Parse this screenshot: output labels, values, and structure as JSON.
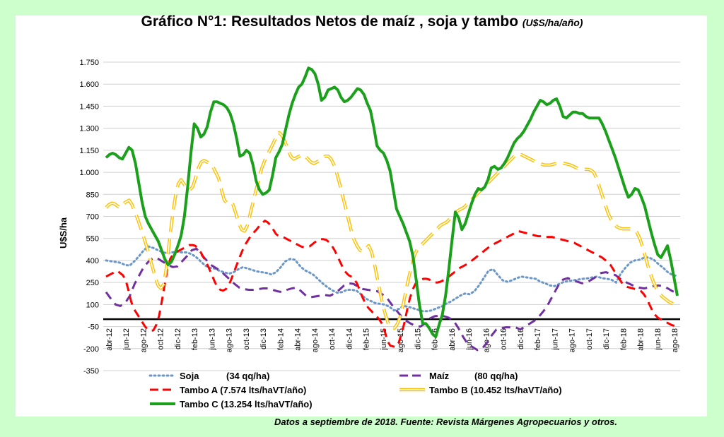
{
  "title": "Gráfico N°1: Resultados Netos de maíz , soja y tambo",
  "title_units": "(U$S/ha/año)",
  "footnote": "Datos a septiembre de 2018. Fuente: Revista Márgenes Agropecuarios y otros.",
  "colors": {
    "background": "#ccffcc",
    "soja": "#6a96c8",
    "maiz": "#7030a0",
    "tamboA": "#ff0000",
    "tamboB": "#ffc000",
    "tamboC": "#1aa01a"
  },
  "chart_data": {
    "type": "line",
    "ylabel": "U$S/ha",
    "ylim": [
      -350,
      1750
    ],
    "yticks": [
      -350,
      -200,
      -50,
      100,
      250,
      400,
      550,
      700,
      850,
      1000,
      1150,
      1300,
      1450,
      1600,
      1750
    ],
    "ytick_labels": [
      "-350",
      "-200",
      "-50",
      "100",
      "250",
      "400",
      "550",
      "700",
      "850",
      "1.000",
      "1.150",
      "1.300",
      "1.450",
      "1.600",
      "1.750"
    ],
    "xtick_labels": [
      "abr-12",
      "jun-12",
      "ago-12",
      "oct-12",
      "dic-12",
      "feb-13",
      "jun-13",
      "ago-13",
      "oct-13",
      "dic-13",
      "feb-14",
      "abr-14",
      "ago-14",
      "oct-14",
      "dic-14",
      "feb-15",
      "jun-15",
      "ago-15",
      "dic-15",
      "feb-16",
      "abr-16",
      "jun-16",
      "ago-16",
      "oct-16",
      "dic-16",
      "feb-17",
      "jun-17",
      "ago-17",
      "oct-17",
      "dic-17",
      "feb-18",
      "abr-18",
      "jun-18",
      "ago-18"
    ],
    "grid": true,
    "zero_line": true,
    "legend_position": "bottom",
    "x_start": "abr-12",
    "x_end": "sep-18",
    "series": [
      {
        "key": "soja",
        "name": "Soja",
        "legend_detail": "(34 qq/ha)",
        "style": "dotted",
        "values": [
          400,
          395,
          390,
          385,
          370,
          365,
          395,
          430,
          470,
          495,
          485,
          470,
          455,
          450,
          455,
          460,
          455,
          455,
          445,
          425,
          395,
          365,
          350,
          345,
          330,
          320,
          310,
          320,
          340,
          355,
          345,
          335,
          325,
          320,
          315,
          305,
          320,
          355,
          395,
          410,
          405,
          365,
          335,
          320,
          300,
          270,
          240,
          215,
          195,
          180,
          185,
          200,
          200,
          195,
          170,
          140,
          125,
          110,
          105,
          100,
          85,
          60,
          70,
          90,
          85,
          75,
          65,
          55,
          55,
          60,
          75,
          85,
          105,
          120,
          140,
          160,
          175,
          170,
          190,
          230,
          280,
          330,
          340,
          300,
          265,
          255,
          265,
          280,
          290,
          285,
          280,
          275,
          255,
          245,
          230,
          225,
          240,
          255,
          260,
          265,
          270,
          275,
          278,
          285,
          290,
          280,
          275,
          270,
          250,
          310,
          350,
          385,
          400,
          405,
          420,
          420,
          405,
          375,
          350,
          320,
          300,
          295
        ],
        "name_label_offset": 0
      },
      {
        "key": "maiz",
        "name": "Maíz",
        "legend_detail": "(80 qq/ha)",
        "style": "dashed",
        "values": [
          185,
          140,
          100,
          90,
          110,
          160,
          240,
          300,
          360,
          395,
          420,
          410,
          390,
          370,
          355,
          360,
          395,
          430,
          470,
          480,
          440,
          405,
          370,
          350,
          330,
          300,
          270,
          240,
          215,
          205,
          200,
          200,
          205,
          210,
          210,
          200,
          190,
          185,
          200,
          210,
          215,
          190,
          160,
          150,
          155,
          160,
          165,
          160,
          175,
          200,
          230,
          245,
          240,
          220,
          205,
          200,
          195,
          190,
          170,
          145,
          100,
          60,
          20,
          -10,
          -30,
          -45,
          -50,
          -30,
          5,
          20,
          25,
          20,
          10,
          -10,
          -60,
          -120,
          -170,
          -190,
          -210,
          -200,
          -160,
          -110,
          -70,
          -60,
          -55,
          -55,
          -55,
          -70,
          -50,
          -30,
          -10,
          20,
          60,
          110,
          170,
          230,
          270,
          280,
          265,
          255,
          245,
          250,
          270,
          290,
          315,
          320,
          310,
          300,
          275,
          255,
          240,
          225,
          215,
          210,
          215,
          225,
          230,
          225,
          210,
          190,
          180
        ],
        "name_label_offset": 0
      },
      {
        "key": "tamboA",
        "name": "Tambo  A",
        "legend_detail": "(7.574 lts/haVT/año)",
        "style": "dashed",
        "values": [
          290,
          300,
          310,
          320,
          330,
          315,
          300,
          270,
          200,
          120,
          70,
          40,
          10,
          -20,
          -50,
          -70,
          -80,
          -75,
          -40,
          20,
          120,
          230,
          340,
          410,
          440,
          455,
          465,
          475,
          485,
          495,
          505,
          505,
          500,
          480,
          455,
          420,
          385,
          345,
          300,
          255,
          215,
          200,
          195,
          205,
          230,
          275,
          325,
          375,
          425,
          470,
          510,
          540,
          570,
          590,
          610,
          635,
          655,
          670,
          660,
          640,
          610,
          580,
          565,
          560,
          555,
          545,
          535,
          525,
          515,
          505,
          495,
          490,
          490,
          495,
          510,
          525,
          540,
          545,
          545,
          540,
          525,
          500,
          470,
          430,
          390,
          350,
          320,
          300,
          290,
          275,
          245,
          200,
          150,
          110,
          80,
          60,
          40,
          20,
          0,
          -30,
          -80,
          -150,
          -180,
          -185,
          -190,
          -160,
          -100,
          -30,
          60,
          140,
          200,
          240,
          260,
          270,
          275,
          275,
          270,
          260,
          250,
          250,
          255,
          265,
          275,
          290,
          305,
          320,
          335,
          350,
          360,
          370,
          380,
          395,
          410,
          425,
          440,
          455,
          470,
          485,
          500,
          510,
          520,
          530,
          540,
          550,
          560,
          570,
          580,
          590,
          600,
          595,
          590,
          585,
          580,
          575,
          570,
          565,
          565,
          560,
          560,
          560,
          560,
          555,
          550,
          545,
          540,
          535,
          530,
          525,
          520,
          510,
          500,
          490,
          480,
          470,
          460,
          450,
          440,
          430,
          420,
          405,
          390,
          370,
          340,
          310,
          280,
          250,
          230,
          220,
          215,
          210,
          205,
          200,
          190,
          170,
          140,
          100,
          60,
          30,
          10,
          0,
          -10,
          -20,
          -30,
          -40,
          -45,
          -50
        ],
        "name_label_offset": 0
      },
      {
        "key": "tamboB",
        "name": "Tambo B",
        "legend_detail": "(10.452 lts/haVT/año)",
        "style": "double",
        "values": [
          760,
          780,
          790,
          785,
          770,
          760,
          785,
          800,
          810,
          780,
          730,
          680,
          620,
          560,
          500,
          430,
          360,
          290,
          230,
          210,
          240,
          360,
          540,
          700,
          830,
          920,
          950,
          920,
          890,
          880,
          900,
          960,
          1030,
          1070,
          1080,
          1070,
          1060,
          1040,
          1000,
          960,
          880,
          810,
          790,
          800,
          780,
          720,
          650,
          610,
          600,
          640,
          720,
          800,
          880,
          960,
          1030,
          1080,
          1120,
          1160,
          1200,
          1240,
          1270,
          1250,
          1210,
          1160,
          1110,
          1090,
          1100,
          1110,
          1120,
          1110,
          1090,
          1070,
          1060,
          1070,
          1080,
          1100,
          1110,
          1110,
          1090,
          1050,
          990,
          920,
          840,
          760,
          680,
          600,
          540,
          500,
          470,
          460,
          480,
          500,
          460,
          380,
          280,
          180,
          90,
          20,
          -40,
          -60,
          -60,
          -30,
          20,
          100,
          200,
          290,
          370,
          440,
          480,
          500,
          520,
          540,
          560,
          580,
          600,
          620,
          640,
          650,
          660,
          680,
          700,
          720,
          740,
          750,
          760,
          780,
          800,
          820,
          840,
          860,
          880,
          900,
          920,
          940,
          960,
          980,
          1000,
          1020,
          1040,
          1060,
          1080,
          1100,
          1120,
          1125,
          1120,
          1110,
          1100,
          1090,
          1080,
          1070,
          1060,
          1055,
          1050,
          1050,
          1050,
          1055,
          1060,
          1065,
          1065,
          1060,
          1055,
          1050,
          1040,
          1030,
          1025,
          1020,
          1020,
          1020,
          1015,
          1000,
          960,
          900,
          840,
          780,
          720,
          680,
          650,
          630,
          620,
          615,
          615,
          615,
          615,
          610,
          590,
          550,
          490,
          420,
          350,
          290,
          240,
          200,
          170,
          150,
          135,
          120,
          110,
          100,
          90
        ],
        "name_label_offset": 0
      },
      {
        "key": "tamboC",
        "name": "Tambo C",
        "legend_detail": "(13.254 lts/haVT/año)",
        "style": "solid",
        "values": [
          1100,
          1120,
          1130,
          1120,
          1100,
          1090,
          1130,
          1170,
          1150,
          1060,
          930,
          800,
          700,
          650,
          610,
          570,
          530,
          470,
          410,
          370,
          390,
          440,
          500,
          570,
          700,
          900,
          1130,
          1330,
          1300,
          1240,
          1260,
          1310,
          1410,
          1480,
          1480,
          1470,
          1460,
          1440,
          1400,
          1330,
          1230,
          1110,
          1120,
          1150,
          1130,
          1050,
          940,
          880,
          850,
          860,
          880,
          980,
          1100,
          1140,
          1190,
          1290,
          1390,
          1470,
          1530,
          1580,
          1600,
          1650,
          1710,
          1700,
          1670,
          1600,
          1490,
          1510,
          1560,
          1570,
          1580,
          1560,
          1510,
          1480,
          1490,
          1510,
          1540,
          1570,
          1560,
          1530,
          1470,
          1420,
          1310,
          1180,
          1150,
          1130,
          1080,
          1010,
          880,
          750,
          700,
          650,
          590,
          530,
          430,
          270,
          100,
          -30,
          -30,
          -60,
          -100,
          -120,
          -40,
          30,
          160,
          340,
          540,
          730,
          690,
          610,
          650,
          720,
          790,
          850,
          890,
          880,
          900,
          950,
          1030,
          1040,
          1020,
          1030,
          1060,
          1100,
          1150,
          1200,
          1230,
          1250,
          1280,
          1320,
          1360,
          1410,
          1450,
          1490,
          1480,
          1460,
          1470,
          1490,
          1500,
          1450,
          1380,
          1370,
          1390,
          1410,
          1410,
          1400,
          1400,
          1380,
          1370,
          1370,
          1370,
          1370,
          1330,
          1280,
          1220,
          1160,
          1100,
          1030,
          960,
          890,
          830,
          850,
          890,
          880,
          830,
          770,
          680,
          590,
          510,
          440,
          420,
          460,
          500,
          400,
          280,
          160
        ],
        "name_label_offset": 0
      }
    ]
  }
}
